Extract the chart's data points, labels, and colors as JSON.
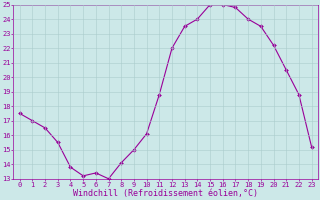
{
  "x": [
    0,
    1,
    2,
    3,
    4,
    5,
    6,
    7,
    8,
    9,
    10,
    11,
    12,
    13,
    14,
    15,
    16,
    17,
    18,
    19,
    20,
    21,
    22,
    23
  ],
  "y": [
    17.5,
    17.0,
    16.5,
    15.5,
    13.8,
    13.2,
    13.4,
    13.0,
    14.1,
    15.0,
    16.1,
    18.8,
    22.0,
    23.5,
    24.0,
    25.0,
    25.0,
    24.8,
    24.0,
    23.5,
    22.2,
    20.5,
    18.8,
    15.2
  ],
  "line_color": "#990099",
  "marker": "D",
  "marker_size": 2.0,
  "background_color": "#cce8e8",
  "grid_color": "#aacccc",
  "xlabel": "Windchill (Refroidissement éolien,°C)",
  "xlabel_color": "#990099",
  "tick_color": "#990099",
  "ylim": [
    13,
    25
  ],
  "xlim": [
    -0.5,
    23.5
  ],
  "yticks": [
    13,
    14,
    15,
    16,
    17,
    18,
    19,
    20,
    21,
    22,
    23,
    24,
    25
  ],
  "xticks": [
    0,
    1,
    2,
    3,
    4,
    5,
    6,
    7,
    8,
    9,
    10,
    11,
    12,
    13,
    14,
    15,
    16,
    17,
    18,
    19,
    20,
    21,
    22,
    23
  ],
  "font": "monospace",
  "tick_fontsize": 5.0,
  "xlabel_fontsize": 6.0,
  "linewidth": 0.8
}
